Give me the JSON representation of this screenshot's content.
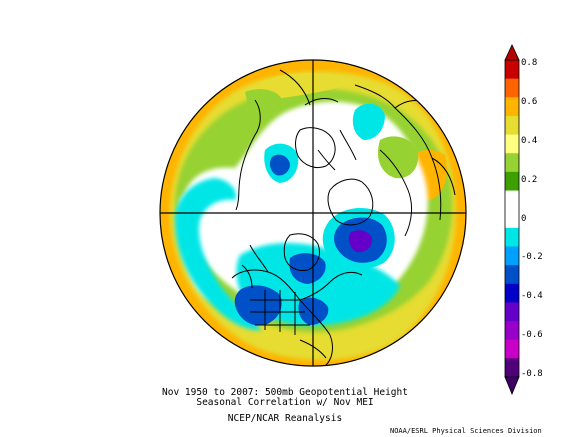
{
  "caption": {
    "line1": "Nov 1950 to 2007: 500mb Geopotential Height",
    "line2": "Seasonal Correlation w/ Nov MEI",
    "line3": "NCEP/NCAR Reanalysis"
  },
  "credit": "NOAA/ESRL Physical Sciences Division",
  "colorbar": {
    "ticks": [
      "0.8",
      "0.6",
      "0.4",
      "0.2",
      "0",
      "-0.2",
      "-0.4",
      "-0.6",
      "-0.8"
    ],
    "colors": [
      "#c80000",
      "#ff6400",
      "#ffb400",
      "#e6dc32",
      "#ffff80",
      "#96d232",
      "#3ca000",
      "#ffffff",
      "#ffffff",
      "#00e6e6",
      "#00a0ff",
      "#0050c8",
      "#0000c8",
      "#6400c8",
      "#9600c8",
      "#c800c8",
      "#500078"
    ],
    "arrow_top": "#b40000",
    "arrow_bottom": "#3c0064"
  }
}
